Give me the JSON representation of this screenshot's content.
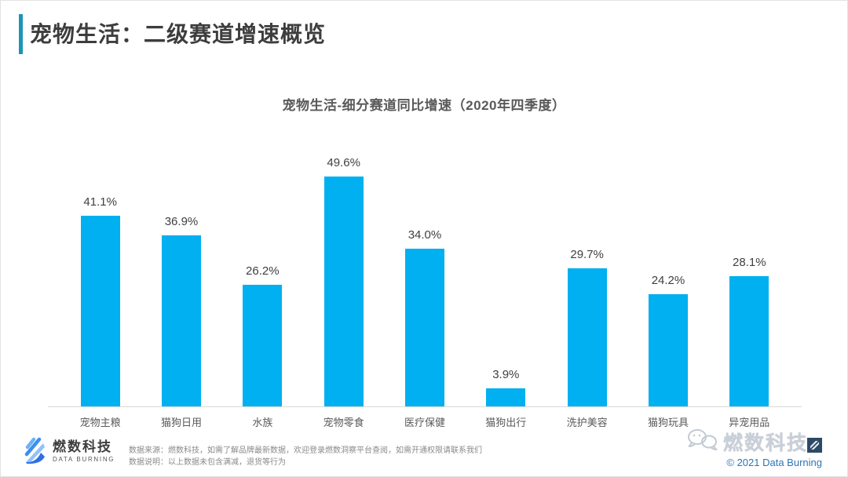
{
  "page": {
    "title": "宠物生活：二级赛道增速概览"
  },
  "chart_data": {
    "type": "bar",
    "title": "宠物生活-细分赛道同比增速（2020年四季度）",
    "categories": [
      "宠物主粮",
      "猫狗日用",
      "水族",
      "宠物零食",
      "医疗保健",
      "猫狗出行",
      "洗护美容",
      "猫狗玩具",
      "异宠用品"
    ],
    "values": [
      41.1,
      36.9,
      26.2,
      49.6,
      34.0,
      3.9,
      29.7,
      24.2,
      28.1
    ],
    "data_labels": [
      "41.1%",
      "36.9%",
      "26.2%",
      "49.6%",
      "34.0%",
      "3.9%",
      "29.7%",
      "24.2%",
      "28.1%"
    ],
    "unit": "%",
    "xlabel": "",
    "ylabel": "",
    "ylim": [
      0,
      57
    ],
    "grid": false,
    "legend": "none",
    "value_label_position": "above-bar",
    "bar_color": "#00b0f0",
    "baseline_color": "#d9d9d9"
  },
  "footer": {
    "logo": {
      "name_cn": "燃数科技",
      "name_en": "DATA BURNING"
    },
    "source_note": "数据来源：燃数科技，如需了解品牌最新数据，欢迎登录燃数洞察平台查阅，如需开通权限请联系我们",
    "data_note": "数据说明：以上数据未包含满减，退货等行为",
    "watermark": {
      "text": "燃数科技"
    },
    "copyright": "© 2021 Data Burning"
  },
  "colors": {
    "accent_bar": "#1a96b4",
    "bar": "#00b0f0",
    "copyright": "#2e75b6"
  }
}
